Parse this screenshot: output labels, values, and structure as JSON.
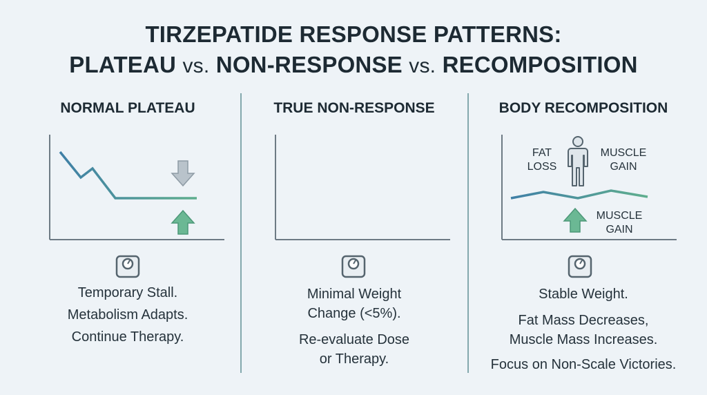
{
  "title": {
    "line1": "TIRZEPATIDE RESPONSE PATTERNS:",
    "line2_a": "PLATEAU",
    "vs1": "vs.",
    "line2_b": "NON-RESPONSE",
    "vs2": "vs.",
    "line2_c": "RECOMPOSITION"
  },
  "panels": [
    {
      "heading": "NORMAL PLATEAU",
      "desc": [
        "Temporary Stall.",
        "Metabolism Adapts.",
        "Continue Therapy."
      ],
      "icons": [
        "down-arrow-icon",
        "up-arrow-icon",
        "scale-icon"
      ]
    },
    {
      "heading": "TRUE NON-RESPONSE",
      "desc": [
        "Minimal Weight",
        "Change (<5%).",
        "Re-evaluate Dose",
        "or Therapy."
      ],
      "icons": [
        "scale-icon"
      ]
    },
    {
      "heading": "BODY RECOMPOSITION",
      "fat_loss": [
        "FAT",
        "LOSS"
      ],
      "muscle_gain_top": [
        "MUSCLE",
        "GAIN"
      ],
      "muscle_gain_bottom": [
        "MUSCLE",
        "GAIN"
      ],
      "desc": [
        "Stable Weight.",
        "Fat Mass Decreases,",
        "Muscle Mass Increases.",
        "Focus on Non-Scale Victories."
      ],
      "icons": [
        "person-icon",
        "up-arrow-icon",
        "scale-icon"
      ]
    }
  ],
  "colors": {
    "blue_line": "#3f7fa6",
    "green_line": "#5fae8e",
    "down_arrow": "#b9c3cb",
    "up_arrow": "#5fae8e",
    "divider": "#5f8f94"
  }
}
